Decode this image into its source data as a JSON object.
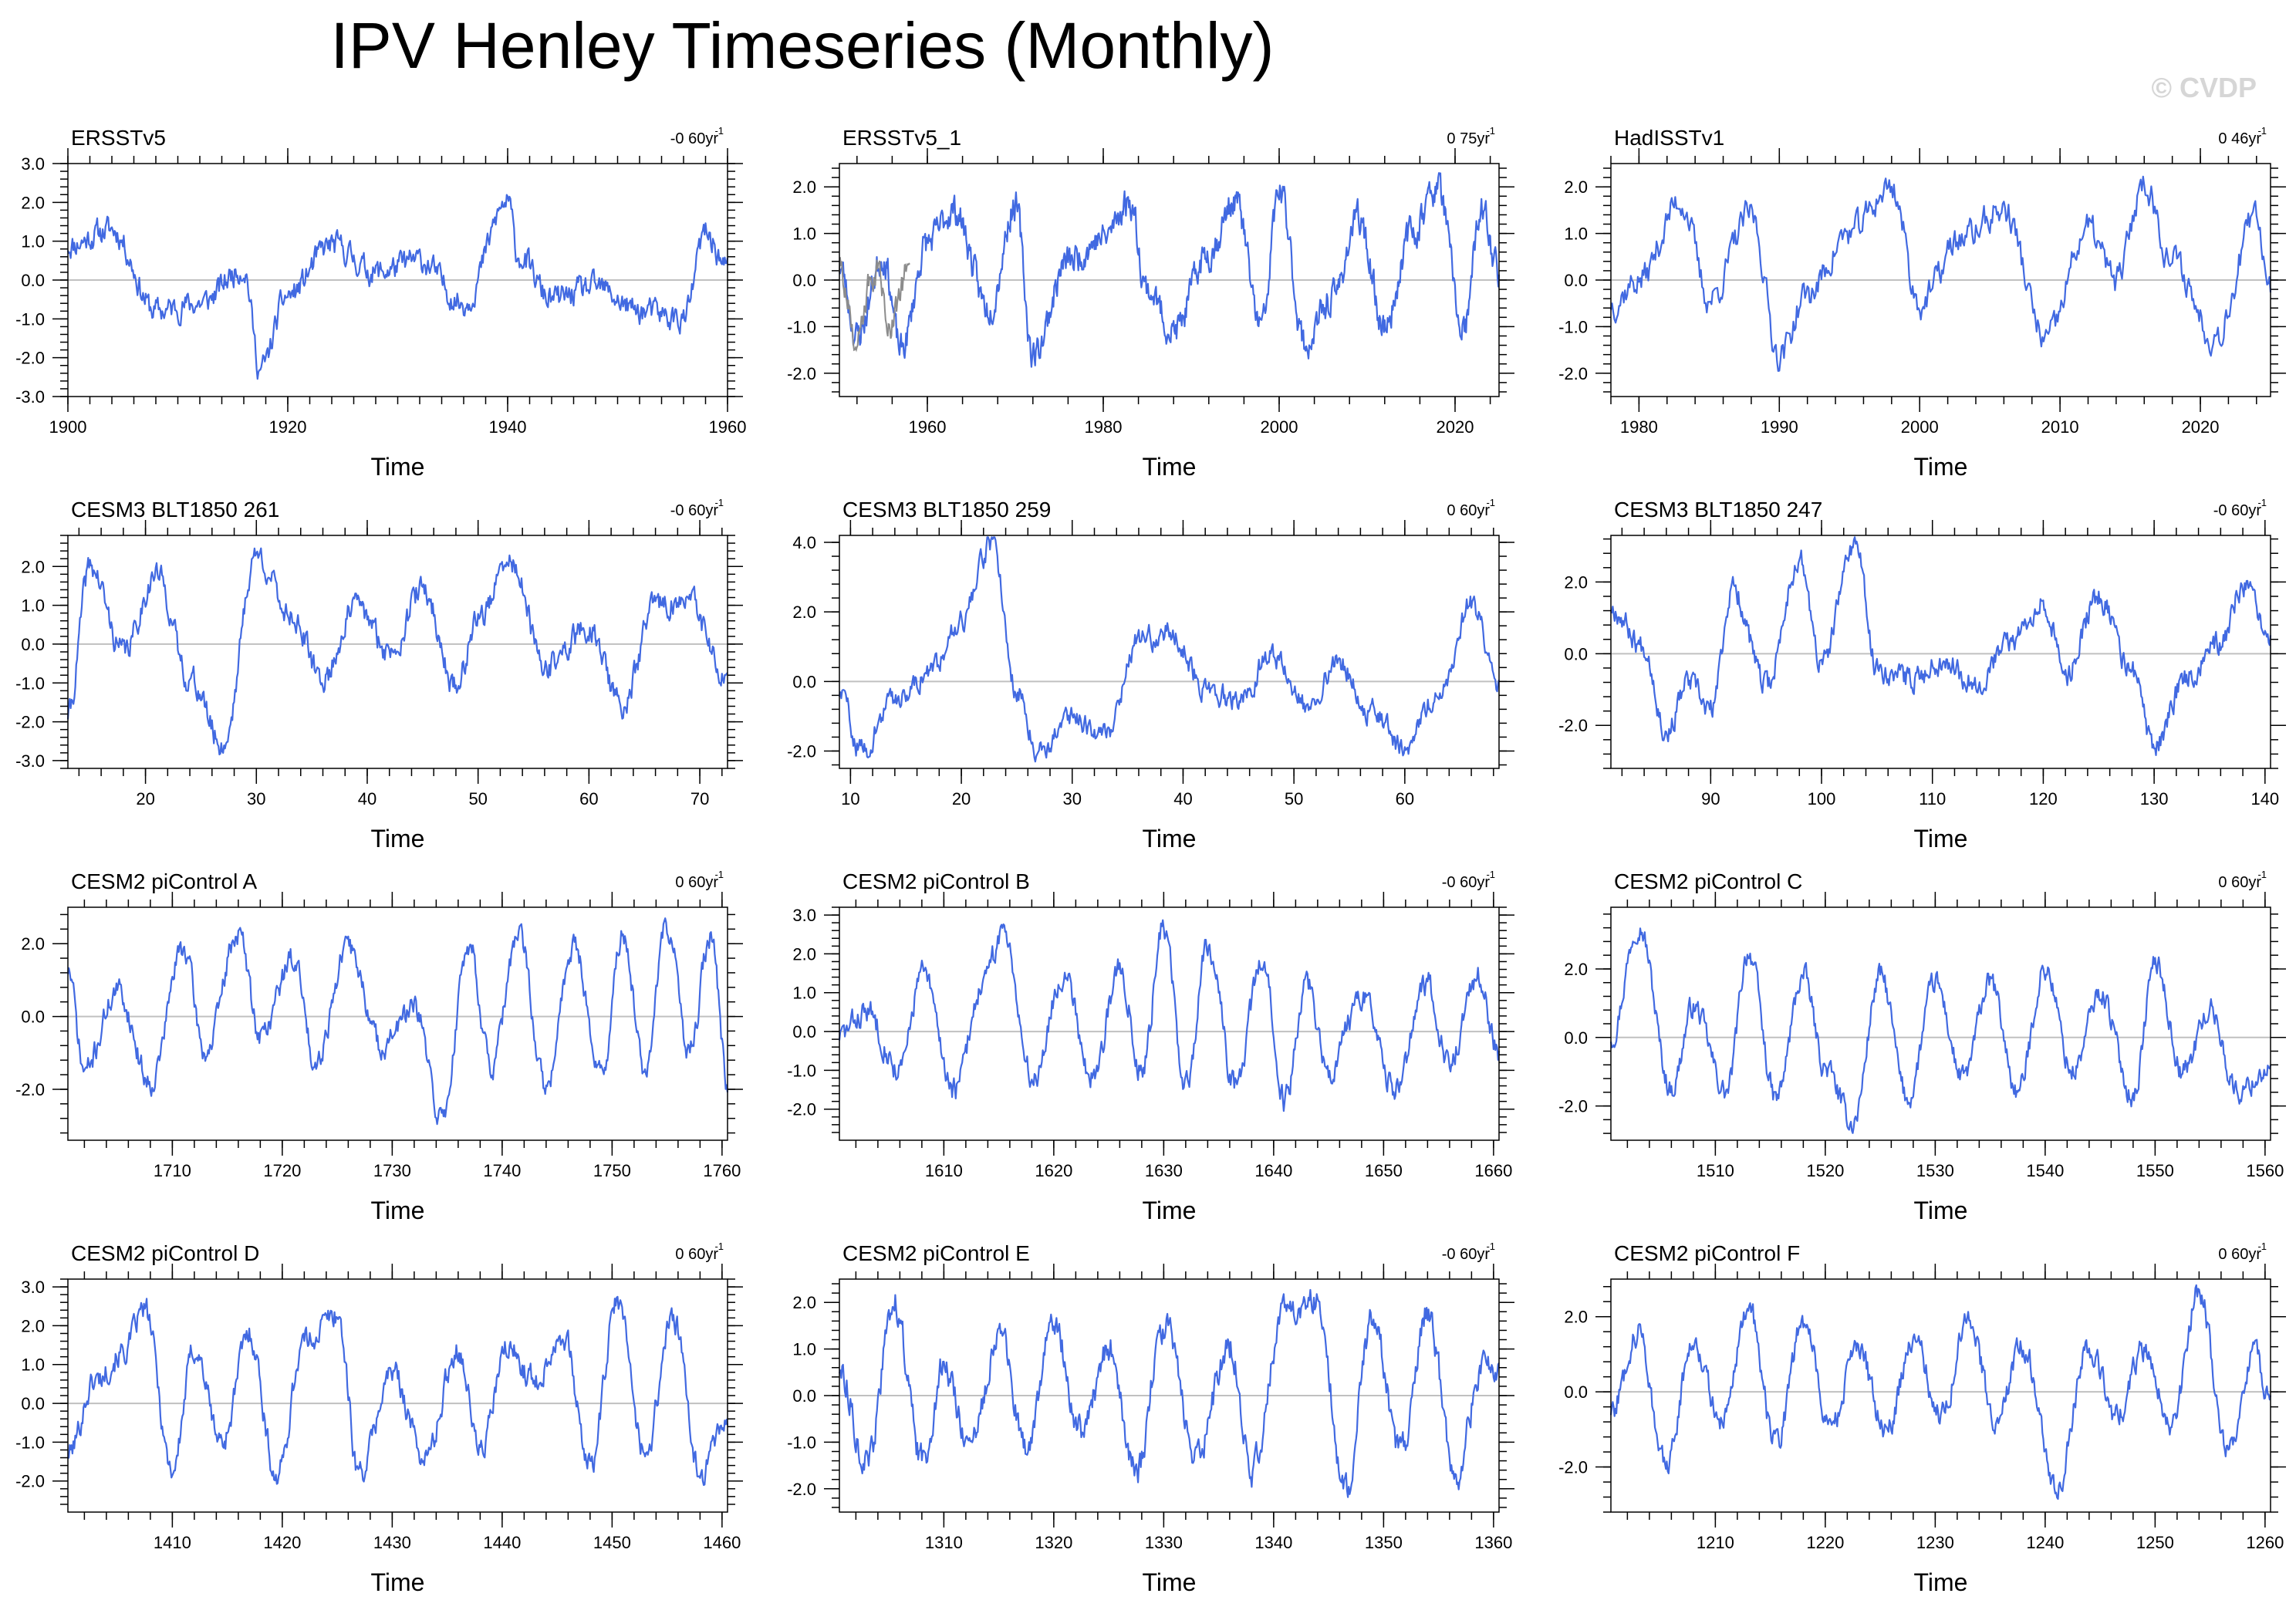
{
  "title": "IPV Henley Timeseries (Monthly)",
  "watermark": "© CVDP",
  "colors": {
    "series": "#4169e1",
    "secondary": "#8c8c8c",
    "zero_line": "#c0c0c0",
    "watermark": "#d6d6d6"
  },
  "chart_data": [
    {
      "type": "line",
      "title": "ERSSTv5",
      "trend": "-0 60yr",
      "xlabel": "Time",
      "xlim": [
        1900,
        1960
      ],
      "xticks": [
        1900,
        1920,
        1940,
        1960
      ],
      "ylim": [
        -3,
        3
      ],
      "yticks": [
        -3,
        -2,
        -1,
        0,
        1,
        2,
        3
      ],
      "yfmt": 1,
      "seed": 11,
      "series": [
        {
          "name": "IPV",
          "t": [
            1900,
            1904,
            1908,
            1912,
            1916,
            1917.5,
            1920,
            1924,
            1928,
            1932,
            1936,
            1940,
            1941,
            1944,
            1948,
            1952,
            1956,
            1958,
            1960
          ],
          "v": [
            0.9,
            1.3,
            -0.8,
            -0.6,
            0.3,
            -2.3,
            -0.4,
            0.9,
            0.2,
            0.5,
            -0.6,
            2.0,
            0.6,
            -0.5,
            -0.2,
            -0.8,
            -1.0,
            1.2,
            0.3
          ]
        }
      ]
    },
    {
      "type": "line",
      "title": "ERSSTv5_1",
      "trend": "0 75yr",
      "xlabel": "Time",
      "xlim": [
        1950,
        2025
      ],
      "xticks": [
        1960,
        1980,
        2000,
        2020
      ],
      "ylim": [
        -2.5,
        2.5
      ],
      "yticks": [
        -2,
        -1,
        0,
        1,
        2
      ],
      "yfmt": 1,
      "seed": 23,
      "series": [
        {
          "name": "IPV",
          "t": [
            1950,
            1952,
            1955,
            1957,
            1960,
            1963,
            1967,
            1970,
            1972,
            1976,
            1980,
            1983,
            1985,
            1988,
            1992,
            1995,
            1998,
            2000,
            2003,
            2006,
            2009,
            2012,
            2015,
            2018,
            2021,
            2023,
            2025
          ],
          "v": [
            0.3,
            -1.2,
            0.5,
            -1.5,
            0.8,
            1.5,
            -0.6,
            1.6,
            -1.6,
            0.4,
            0.9,
            1.7,
            -0.2,
            -1.1,
            0.6,
            1.7,
            -1.0,
            1.9,
            -1.4,
            -0.4,
            1.3,
            -1.0,
            1.0,
            2.0,
            -1.1,
            1.5,
            0.2
          ]
        },
        {
          "name": "Secondary",
          "t": [
            1950,
            1952,
            1954,
            1956,
            1958
          ],
          "v": [
            0.3,
            -1.4,
            0.2,
            -0.9,
            0.4
          ]
        }
      ]
    },
    {
      "type": "line",
      "title": "HadISSTv1",
      "trend": "0 46yr",
      "xlabel": "Time",
      "xlim": [
        1978,
        2025
      ],
      "xticks": [
        1980,
        1990,
        2000,
        2010,
        2020
      ],
      "ylim": [
        -2.5,
        2.5
      ],
      "yticks": [
        -2,
        -1,
        0,
        1,
        2
      ],
      "yfmt": 1,
      "seed": 37,
      "series": [
        {
          "name": "IPV",
          "t": [
            1978,
            1980,
            1983,
            1985,
            1988,
            1990,
            1992,
            1995,
            1998,
            2000,
            2003,
            2006,
            2009,
            2012,
            2014,
            2016,
            2018,
            2021,
            2024,
            2025
          ],
          "v": [
            -0.5,
            0.0,
            1.7,
            -0.4,
            1.4,
            -1.6,
            -0.3,
            1.0,
            2.0,
            -0.5,
            0.9,
            1.5,
            -1.3,
            1.1,
            0.0,
            2.1,
            0.4,
            -1.2,
            1.3,
            -0.1
          ]
        }
      ]
    },
    {
      "type": "line",
      "title": "CESM3 BLT1850 261",
      "trend": "-0 60yr",
      "xlabel": "Time",
      "xlim": [
        13,
        72.5
      ],
      "xticks": [
        20,
        30,
        40,
        50,
        60,
        70
      ],
      "ylim": [
        -3.2,
        2.8
      ],
      "yticks": [
        -3,
        -2,
        -1,
        0,
        1,
        2
      ],
      "yfmt": 1,
      "seed": 41,
      "series": [
        {
          "name": "IPV",
          "t": [
            13,
            15,
            18,
            21,
            24,
            27,
            30,
            33,
            36,
            39,
            42,
            45,
            48,
            50,
            53,
            56,
            60,
            63,
            66,
            69,
            72.5
          ],
          "v": [
            -1.8,
            2.0,
            -0.2,
            1.8,
            -0.9,
            -2.6,
            2.3,
            0.8,
            -0.9,
            1.0,
            -0.2,
            1.4,
            -1.1,
            0.7,
            2.1,
            -0.6,
            0.4,
            -1.6,
            1.0,
            1.1,
            -1.0
          ]
        }
      ]
    },
    {
      "type": "line",
      "title": "CESM3 BLT1850 259",
      "trend": "0 60yr",
      "xlabel": "Time",
      "xlim": [
        9,
        68.5
      ],
      "xticks": [
        10,
        20,
        30,
        40,
        50,
        60
      ],
      "ylim": [
        -2.5,
        4.2
      ],
      "yticks": [
        -2,
        0,
        2,
        4
      ],
      "yfmt": 1,
      "seed": 59,
      "series": [
        {
          "name": "IPV",
          "t": [
            9,
            11,
            14,
            17,
            20,
            22.8,
            25,
            27,
            30,
            33,
            36,
            39,
            42,
            45,
            48,
            51,
            54,
            57,
            60,
            63,
            66,
            68.5
          ],
          "v": [
            -0.3,
            -2.0,
            -0.5,
            0.2,
            1.8,
            4.0,
            -0.3,
            -2.0,
            -1.0,
            -1.5,
            1.2,
            1.4,
            -0.2,
            -0.6,
            0.8,
            -0.7,
            0.6,
            -0.9,
            -1.9,
            -0.4,
            2.3,
            -0.3
          ]
        }
      ]
    },
    {
      "type": "line",
      "title": "CESM3 BLT1850 247",
      "trend": "-0 60yr",
      "xlabel": "Time",
      "xlim": [
        81,
        140.5
      ],
      "xticks": [
        90,
        100,
        110,
        120,
        130,
        140
      ],
      "ylim": [
        -3.2,
        3.3
      ],
      "yticks": [
        -2,
        0,
        2
      ],
      "yfmt": 1,
      "seed": 67,
      "series": [
        {
          "name": "IPV",
          "t": [
            81,
            84,
            86,
            88,
            90,
            92,
            95,
            98,
            100,
            103,
            105,
            108,
            111,
            114,
            117,
            120,
            122,
            125,
            128,
            130,
            133,
            136,
            138,
            140.5
          ],
          "v": [
            1.3,
            0.2,
            -2.2,
            -0.8,
            -1.6,
            1.8,
            -0.9,
            2.6,
            -0.3,
            3.1,
            -0.4,
            -0.7,
            -0.2,
            -0.8,
            0.3,
            1.5,
            -0.6,
            1.6,
            -0.5,
            -2.6,
            -0.6,
            0.3,
            1.9,
            0.3
          ]
        }
      ]
    },
    {
      "type": "line",
      "title": "CESM2 piControl A",
      "trend": "0 60yr",
      "xlabel": "Time",
      "xlim": [
        1700.5,
        1760.5
      ],
      "xticks": [
        1710,
        1720,
        1730,
        1740,
        1750,
        1760
      ],
      "ylim": [
        -3.4,
        3.0
      ],
      "yticks": [
        -2,
        0,
        2
      ],
      "yfmt": 1,
      "seed": 71,
      "series": [
        {
          "name": "IPV",
          "t": [
            1700.5,
            1702,
            1705,
            1708,
            1711,
            1713,
            1716,
            1718,
            1721,
            1723,
            1726,
            1729,
            1732,
            1734.5,
            1737,
            1739,
            1741.5,
            1744,
            1746.5,
            1749,
            1751,
            1753,
            1755,
            1757,
            1759,
            1760.5
          ],
          "v": [
            1.3,
            -1.5,
            0.7,
            -1.8,
            1.9,
            -1.0,
            2.3,
            -0.5,
            1.6,
            -1.2,
            1.9,
            -0.8,
            0.2,
            -2.8,
            2.0,
            -1.4,
            2.2,
            -2.0,
            2.0,
            -1.6,
            2.2,
            -1.5,
            2.5,
            -1.0,
            2.2,
            -1.8
          ]
        }
      ]
    },
    {
      "type": "line",
      "title": "CESM2 piControl B",
      "trend": "-0 60yr",
      "xlabel": "Time",
      "xlim": [
        1600.5,
        1660.5
      ],
      "xticks": [
        1610,
        1620,
        1630,
        1640,
        1650,
        1660
      ],
      "ylim": [
        -2.8,
        3.2
      ],
      "yticks": [
        -2,
        -1,
        0,
        1,
        2,
        3
      ],
      "yfmt": 1,
      "seed": 83,
      "series": [
        {
          "name": "IPV",
          "t": [
            1600.5,
            1603,
            1606,
            1608,
            1611,
            1613.5,
            1615.5,
            1618,
            1621,
            1623.5,
            1626,
            1628,
            1630,
            1632,
            1634,
            1636.5,
            1639,
            1641,
            1643,
            1645,
            1648,
            1651,
            1654,
            1656,
            1658.5,
            1660.5
          ],
          "v": [
            -0.1,
            0.5,
            -1.0,
            1.5,
            -1.5,
            1.2,
            2.6,
            -1.2,
            1.5,
            -1.2,
            1.6,
            -1.0,
            2.7,
            -1.5,
            2.3,
            -1.4,
            1.8,
            -1.8,
            1.3,
            -1.0,
            0.8,
            -1.4,
            1.2,
            -0.8,
            1.4,
            -0.5
          ]
        }
      ]
    },
    {
      "type": "line",
      "title": "CESM2 piControl C",
      "trend": "0 60yr",
      "xlabel": "Time",
      "xlim": [
        1500.5,
        1560.5
      ],
      "xticks": [
        1510,
        1520,
        1530,
        1540,
        1550,
        1560
      ],
      "ylim": [
        -3.0,
        3.8
      ],
      "yticks": [
        -2,
        0,
        2
      ],
      "yfmt": 1,
      "seed": 97,
      "series": [
        {
          "name": "IPV",
          "t": [
            1500.5,
            1503,
            1506,
            1508,
            1511,
            1513,
            1515.5,
            1518,
            1520,
            1522.5,
            1525,
            1527.5,
            1530,
            1532.5,
            1535,
            1537.5,
            1540,
            1542.5,
            1545,
            1548,
            1550,
            1552.5,
            1555,
            1557.5,
            1560.5
          ],
          "v": [
            0.0,
            3.3,
            -1.5,
            0.9,
            -1.6,
            2.5,
            -1.8,
            1.8,
            -0.9,
            -2.5,
            1.8,
            -1.8,
            1.6,
            -1.2,
            1.6,
            -1.6,
            2.0,
            -1.0,
            1.3,
            -1.7,
            2.2,
            -1.0,
            0.8,
            -1.6,
            -0.9
          ]
        }
      ]
    },
    {
      "type": "line",
      "title": "CESM2 piControl D",
      "trend": "0 60yr",
      "xlabel": "Time",
      "xlim": [
        1400.5,
        1460.5
      ],
      "xticks": [
        1410,
        1420,
        1430,
        1440,
        1450,
        1460
      ],
      "ylim": [
        -2.8,
        3.2
      ],
      "yticks": [
        -2,
        -1,
        0,
        1,
        2,
        3
      ],
      "yfmt": 1,
      "seed": 101,
      "series": [
        {
          "name": "IPV",
          "t": [
            1400.5,
            1403,
            1405.5,
            1407.5,
            1410,
            1412,
            1414.5,
            1417,
            1419.5,
            1422,
            1425,
            1427,
            1430,
            1433,
            1436,
            1438,
            1440.5,
            1443,
            1445.5,
            1448,
            1450.5,
            1453,
            1455.5,
            1458,
            1460.5
          ],
          "v": [
            -1.3,
            0.6,
            1.3,
            2.4,
            -1.7,
            1.4,
            -1.0,
            1.8,
            -1.9,
            1.6,
            2.3,
            -1.8,
            0.8,
            -1.4,
            1.4,
            -1.2,
            1.4,
            0.6,
            1.8,
            -1.6,
            2.6,
            -1.3,
            2.2,
            -1.8,
            -0.4
          ]
        }
      ]
    },
    {
      "type": "line",
      "title": "CESM2 piControl E",
      "trend": "-0 60yr",
      "xlabel": "Time",
      "xlim": [
        1300.5,
        1360.5
      ],
      "xticks": [
        1310,
        1320,
        1330,
        1340,
        1350,
        1360
      ],
      "ylim": [
        -2.5,
        2.5
      ],
      "yticks": [
        -2,
        -1,
        0,
        1,
        2
      ],
      "yfmt": 1,
      "seed": 113,
      "series": [
        {
          "name": "IPV",
          "t": [
            1300.5,
            1303,
            1305.5,
            1308,
            1310,
            1312.5,
            1315,
            1317.5,
            1320,
            1322.5,
            1325,
            1327.5,
            1330,
            1333,
            1336,
            1338,
            1341,
            1344,
            1346.5,
            1349,
            1351.5,
            1354,
            1356.5,
            1359,
            1360.5
          ],
          "v": [
            0.6,
            -1.5,
            2.0,
            -1.4,
            0.6,
            -1.1,
            1.4,
            -1.2,
            1.6,
            -0.8,
            1.0,
            -1.7,
            1.5,
            -1.2,
            1.0,
            -1.6,
            1.8,
            2.1,
            -2.1,
            1.6,
            -1.2,
            1.8,
            -1.8,
            0.6,
            0.3
          ]
        }
      ]
    },
    {
      "type": "line",
      "title": "CESM2 piControl F",
      "trend": "0 60yr",
      "xlabel": "Time",
      "xlim": [
        1200.5,
        1260.5
      ],
      "xticks": [
        1210,
        1220,
        1230,
        1240,
        1250,
        1260
      ],
      "ylim": [
        -3.2,
        3.0
      ],
      "yticks": [
        -2,
        0,
        2
      ],
      "yfmt": 1,
      "seed": 127,
      "series": [
        {
          "name": "IPV",
          "t": [
            1200.5,
            1203,
            1205.5,
            1208,
            1210.5,
            1213,
            1215.5,
            1218,
            1220.5,
            1223,
            1225.5,
            1228,
            1230.5,
            1233,
            1235.5,
            1238,
            1241,
            1244,
            1246.5,
            1249,
            1251.5,
            1254,
            1256.5,
            1259,
            1260.5
          ],
          "v": [
            -0.5,
            1.6,
            -2.0,
            1.4,
            -0.8,
            2.2,
            -1.4,
            1.9,
            -0.9,
            1.1,
            -1.1,
            1.4,
            -0.6,
            1.9,
            -0.7,
            1.2,
            -2.6,
            1.2,
            -0.7,
            1.1,
            -0.8,
            2.7,
            -1.6,
            1.1,
            -0.3
          ]
        }
      ]
    }
  ]
}
